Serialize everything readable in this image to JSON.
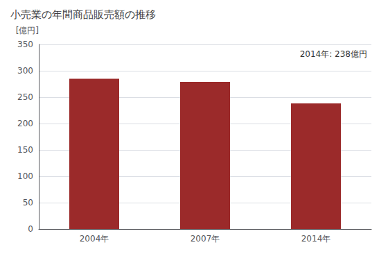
{
  "chart_data": {
    "type": "bar",
    "title": "小売業の年間商品販売額の推移",
    "ylabel": "[億円]",
    "annotation": "2014年: 238億円",
    "categories": [
      "2004年",
      "2007年",
      "2014年"
    ],
    "values": [
      285,
      279,
      238
    ],
    "color": "#9b2a2a",
    "ylim": [
      0,
      350
    ],
    "yticks": [
      0,
      50,
      100,
      150,
      200,
      250,
      300,
      350
    ],
    "grid": true
  }
}
